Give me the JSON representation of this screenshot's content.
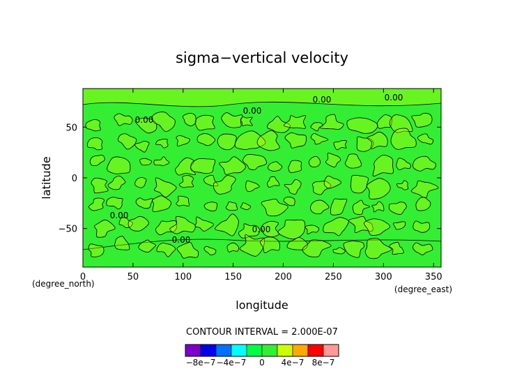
{
  "chart_data": {
    "type": "heatmap",
    "title": "sigma−vertical velocity",
    "xlabel": "longitude",
    "ylabel": "latitude",
    "x_unit": "(degree_east)",
    "y_unit": "(degree_north)",
    "xlim": [
      0,
      357.5
    ],
    "ylim": [
      -88,
      88
    ],
    "x_ticks": [
      0,
      50,
      100,
      150,
      200,
      250,
      300,
      350
    ],
    "y_ticks": [
      -50,
      0,
      50
    ],
    "contour_interval_text": "CONTOUR INTERVAL = 2.000E-07",
    "contour_labels": [
      "0.00",
      "0.00",
      "0.00",
      "0.00",
      "0.00",
      "0.00",
      "0.00"
    ],
    "colorbar": {
      "levels": [
        -1e-06,
        -8e-07,
        -6e-07,
        -4e-07,
        -2e-07,
        0,
        2e-07,
        4e-07,
        6e-07,
        8e-07,
        1e-06
      ],
      "colors": [
        "#7a00cc",
        "#0000ee",
        "#0070ff",
        "#00ffff",
        "#00ff44",
        "#33ee33",
        "#ccff00",
        "#ffaa00",
        "#ff0000",
        "#ff9999"
      ],
      "tick_labels": [
        "−8e−7",
        "−4e−7",
        "0",
        "4e−7",
        "8e−7"
      ]
    },
    "field": {
      "dominant_color": "#33ee33",
      "positive_region_color": "#ccff00"
    }
  }
}
